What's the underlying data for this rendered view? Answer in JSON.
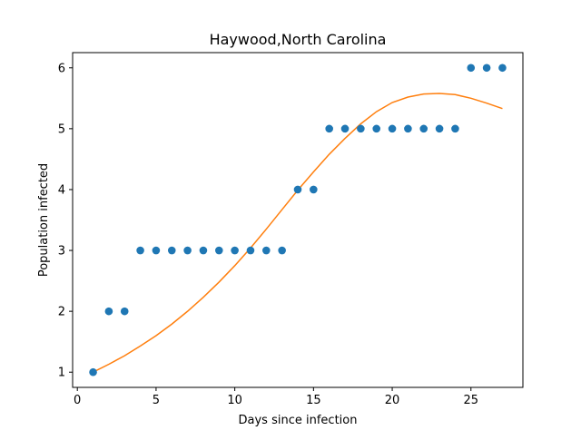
{
  "chart_data": {
    "type": "scatter",
    "title": "Haywood,North Carolina",
    "xlabel": "Days since infection",
    "ylabel": "Population infected",
    "xlim": [
      -0.3,
      28.3
    ],
    "ylim": [
      0.75,
      6.25
    ],
    "xticks": [
      0,
      5,
      10,
      15,
      20,
      25
    ],
    "yticks": [
      1,
      2,
      3,
      4,
      5,
      6
    ],
    "grid": false,
    "series": [
      {
        "kind": "scatter",
        "color": "#1f77b4",
        "x": [
          1,
          2,
          3,
          4,
          5,
          6,
          7,
          8,
          9,
          10,
          11,
          12,
          13,
          14,
          15,
          16,
          17,
          18,
          19,
          20,
          21,
          22,
          23,
          24,
          25,
          26,
          27
        ],
        "y": [
          1,
          2,
          2,
          3,
          3,
          3,
          3,
          3,
          3,
          3,
          3,
          3,
          3,
          4,
          4,
          5,
          5,
          5,
          5,
          5,
          5,
          5,
          5,
          5,
          6,
          6,
          6
        ]
      },
      {
        "kind": "line",
        "color": "#ff7f0e",
        "x": [
          1,
          2,
          3,
          4,
          5,
          6,
          7,
          8,
          9,
          10,
          11,
          12,
          13,
          14,
          15,
          16,
          17,
          18,
          19,
          20,
          21,
          22,
          23,
          24,
          25,
          26,
          27
        ],
        "y": [
          1.0,
          1.13,
          1.27,
          1.43,
          1.6,
          1.79,
          2.0,
          2.23,
          2.48,
          2.75,
          3.04,
          3.35,
          3.67,
          3.99,
          4.29,
          4.58,
          4.84,
          5.08,
          5.28,
          5.43,
          5.52,
          5.57,
          5.58,
          5.56,
          5.5,
          5.42,
          5.33
        ]
      }
    ]
  }
}
